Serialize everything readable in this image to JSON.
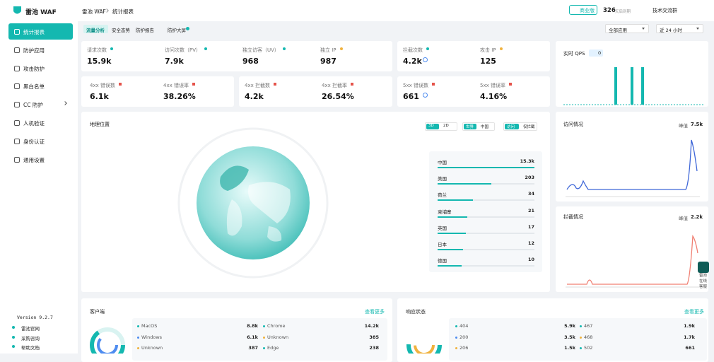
{
  "sidebar": {
    "brand": "雷池 WAF",
    "menu": [
      "统计报表",
      "防护应用",
      "攻击防护",
      "黑白名单",
      "CC 防护",
      "人机验证",
      "身份认证",
      "通用设置"
    ],
    "version": "Version 9.2.7",
    "links": [
      "雷池官网",
      "采购咨询",
      "帮助文档"
    ]
  },
  "header": {
    "breadcrumb": [
      "雷池 WAF",
      "统计报表"
    ],
    "edition": "商业版",
    "days": "326",
    "days_label": "天后到期",
    "community": "技术交流群"
  },
  "tabs": [
    "流量分析",
    "安全态势",
    "防护报告",
    "防护大屏"
  ],
  "filters": [
    "全部应用",
    "近 24 小时"
  ],
  "stats": [
    {
      "label": "请求次数",
      "value": "15.9k"
    },
    {
      "label": "访问次数（PV）",
      "value": "7.9k"
    },
    {
      "label": "独立访客（UV）",
      "value": "968"
    },
    {
      "label": "独立 IP",
      "value": "987"
    },
    {
      "label": "拦截次数",
      "value": "4.2k"
    },
    {
      "label": "攻击 IP",
      "value": "125"
    },
    {
      "label": "4xx 错误数",
      "value": "6.1k"
    },
    {
      "label": "4xx 错误率",
      "value": "38.26%"
    },
    {
      "label": "4xx 拦截数",
      "value": "4.2k"
    },
    {
      "label": "4xx 拦截率",
      "value": "26.54%"
    },
    {
      "label": "5xx 错误数",
      "value": "661"
    },
    {
      "label": "5xx 错误率",
      "value": "4.16%"
    }
  ],
  "qps": {
    "title": "实时 QPS",
    "value": "0"
  },
  "geo": {
    "title": "地理位置",
    "toggles": [
      [
        "3D",
        "2D"
      ],
      [
        "世界",
        "中国"
      ],
      [
        "访问",
        "仅拦截"
      ]
    ],
    "rows": [
      [
        "中国",
        "15.3k"
      ],
      [
        "美国",
        "203"
      ],
      [
        "荷兰",
        "34"
      ],
      [
        "柬埔寨",
        "21"
      ],
      [
        "英国",
        "17"
      ],
      [
        "日本",
        "12"
      ],
      [
        "德国",
        "10"
      ]
    ]
  },
  "visits": {
    "title": "访问情况",
    "peak_label": "峰值",
    "peak": "7.5k"
  },
  "blocks": {
    "title": "拦截情况",
    "peak_label": "峰值",
    "peak": "2.2k"
  },
  "clients": {
    "title": "客户端",
    "more": "查看更多",
    "rows": [
      [
        "MacOS",
        "8.8k"
      ],
      [
        "Chrome",
        "14.2k"
      ],
      [
        "Windows",
        "6.1k"
      ],
      [
        "Unknown",
        "385"
      ],
      [
        "Unknown",
        "387"
      ],
      [
        "Edge",
        "238"
      ]
    ]
  },
  "status": {
    "title": "响应状态",
    "more": "查看更多",
    "rows": [
      [
        "404",
        "5.9k"
      ],
      [
        "467",
        "1.9k"
      ],
      [
        "200",
        "3.5k"
      ],
      [
        "468",
        "1.7k"
      ],
      [
        "206",
        "1.5k"
      ],
      [
        "502",
        "661"
      ]
    ]
  },
  "support": "雷池在线客服"
}
